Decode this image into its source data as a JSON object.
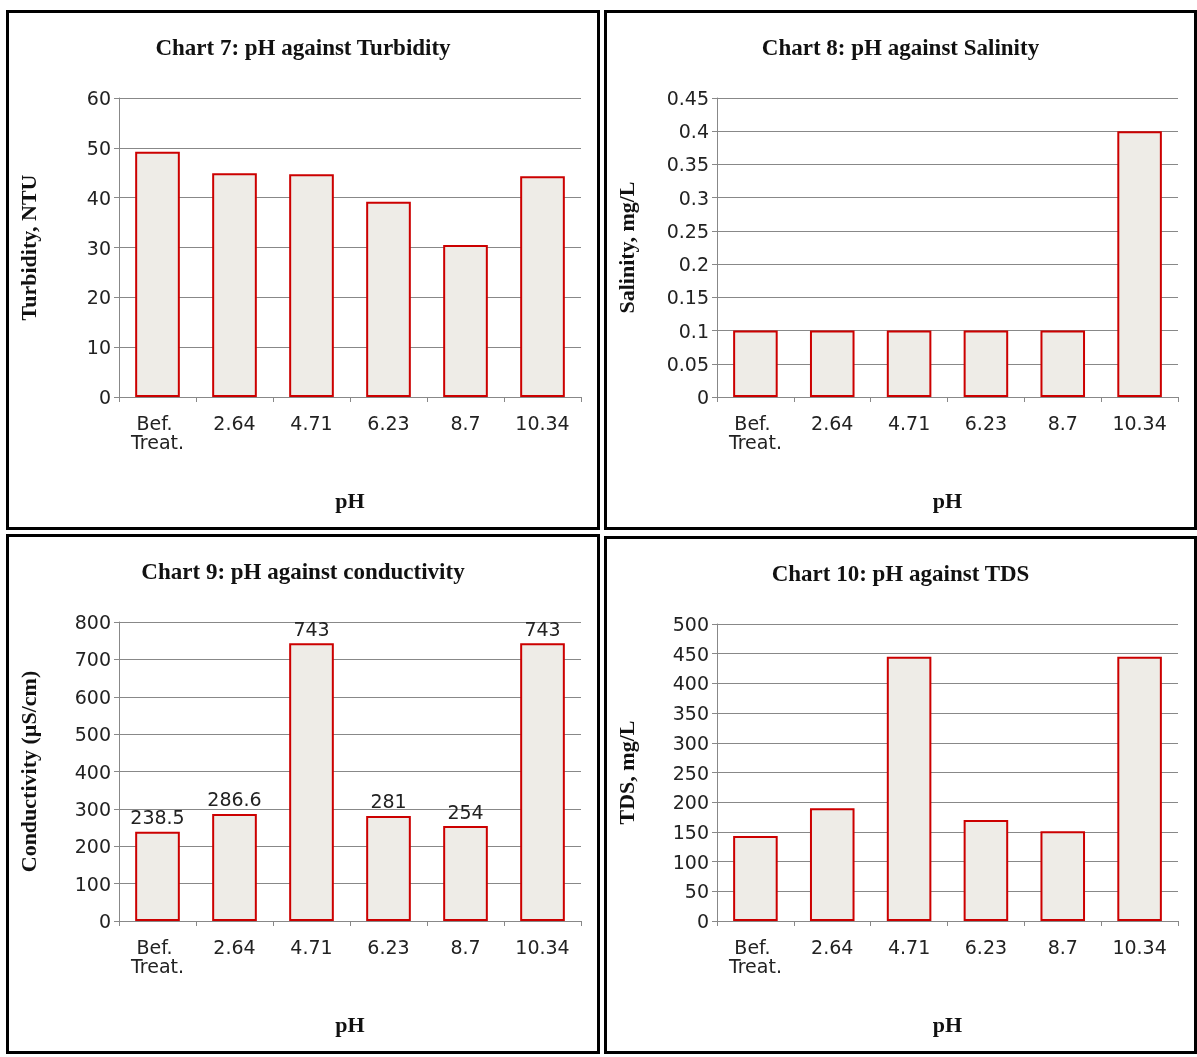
{
  "chart_data": [
    {
      "type": "bar",
      "title": "Chart 7: pH against Turbidity",
      "xlabel": "pH",
      "ylabel": "Turbidity, NTU",
      "categories": [
        "Bef. Treat.",
        "2.64",
        "4.71",
        "6.23",
        "8.7",
        "10.34"
      ],
      "values": [
        49.2,
        44.9,
        44.7,
        39.2,
        30.5,
        44.3
      ],
      "color": "#eeece7",
      "ylim": [
        0,
        60
      ],
      "yticks": [
        0,
        10,
        20,
        30,
        40,
        50,
        60
      ],
      "grid": "y"
    },
    {
      "type": "bar",
      "title": "Chart 8: pH against Salinity",
      "xlabel": "pH",
      "ylabel": "Salinity, mg/L",
      "categories": [
        "Bef. Treat.",
        "2.64",
        "4.71",
        "6.23",
        "8.7",
        "10.34"
      ],
      "values": [
        0.1,
        0.1,
        0.1,
        0.1,
        0.1,
        0.4
      ],
      "color": "#eeece7",
      "ylim": [
        0,
        0.45
      ],
      "yticks": [
        0,
        0.05,
        0.1,
        0.15,
        0.2,
        0.25,
        0.3,
        0.35,
        0.4,
        0.45
      ],
      "grid": "y"
    },
    {
      "type": "bar",
      "title": "Chart 9: pH against conductivity",
      "xlabel": "pH",
      "ylabel": "Conductivity (µS/cm)",
      "categories": [
        "Bef. Treat.",
        "2.64",
        "4.71",
        "6.23",
        "8.7",
        "10.34"
      ],
      "values": [
        238.5,
        286.6,
        743,
        281,
        254,
        743
      ],
      "color": "#eeece7",
      "ylim": [
        0,
        800
      ],
      "yticks": [
        0,
        100,
        200,
        300,
        400,
        500,
        600,
        700,
        800
      ],
      "grid": "y",
      "data_labels": true
    },
    {
      "type": "bar",
      "title": "Chart 10: pH against TDS",
      "xlabel": "pH",
      "ylabel": "TDS, mg/L",
      "categories": [
        "Bef. Treat.",
        "2.64",
        "4.71",
        "6.23",
        "8.7",
        "10.34"
      ],
      "values": [
        143,
        190,
        445,
        170,
        151,
        445
      ],
      "color": "#eeece7",
      "ylim": [
        0,
        500
      ],
      "yticks": [
        0,
        50,
        100,
        150,
        200,
        250,
        300,
        350,
        400,
        450,
        500
      ],
      "grid": "y"
    }
  ]
}
